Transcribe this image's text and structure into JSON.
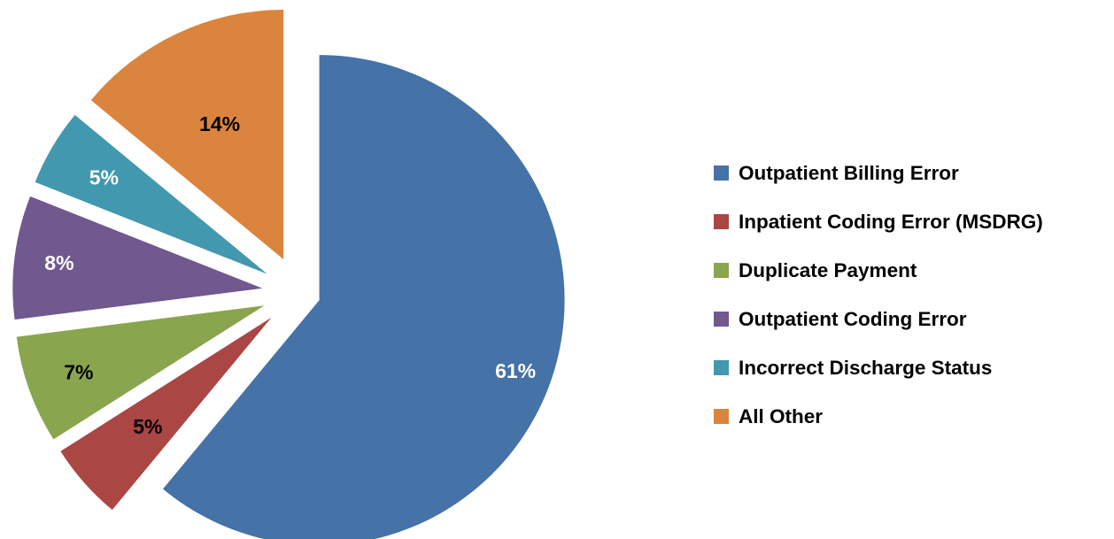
{
  "chart_data": {
    "type": "pie",
    "exploded": true,
    "start_angle_deg": 0,
    "direction": "clockwise",
    "categories": [
      "Outpatient Billing Error",
      "Inpatient Coding Error (MSDRG)",
      "Duplicate Payment",
      "Outpatient Coding Error",
      "Incorrect Discharge Status",
      "All Other"
    ],
    "values": [
      61,
      5,
      7,
      8,
      5,
      14
    ],
    "data_labels": [
      "61%",
      "5%",
      "7%",
      "8%",
      "5%",
      "14%"
    ],
    "colors": [
      "#4572A7",
      "#AA4643",
      "#89A54E",
      "#71588F",
      "#4198AF",
      "#DB843D"
    ],
    "label_colors": [
      "#FFFFFF",
      "#000000",
      "#000000",
      "#FFFFFF",
      "#FFFFFF",
      "#000000"
    ],
    "title": "",
    "legend_position": "right"
  },
  "legend": {
    "items": [
      {
        "label": "Outpatient Billing Error",
        "color": "#4572A7"
      },
      {
        "label": "Inpatient Coding Error (MSDRG)",
        "color": "#AA4643"
      },
      {
        "label": "Duplicate Payment",
        "color": "#89A54E"
      },
      {
        "label": "Outpatient Coding Error",
        "color": "#71588F"
      },
      {
        "label": "Incorrect Discharge Status",
        "color": "#4198AF"
      },
      {
        "label": "All Other",
        "color": "#DB843D"
      }
    ]
  }
}
